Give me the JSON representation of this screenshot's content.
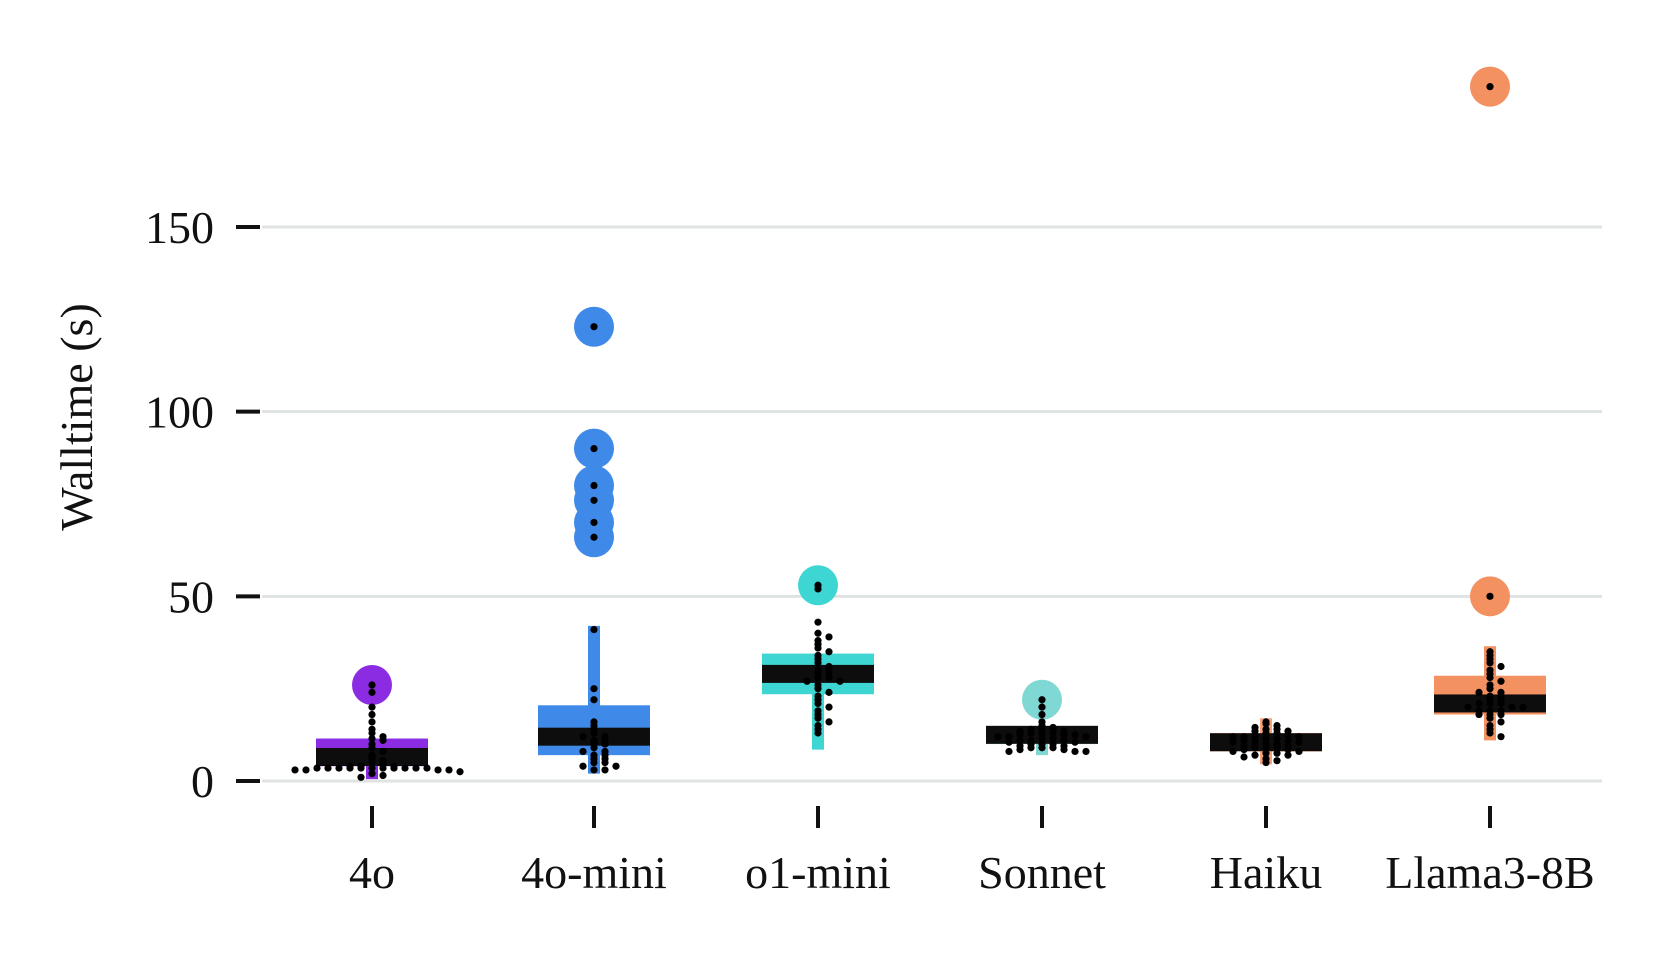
{
  "chart_data": {
    "type": "box",
    "title": "",
    "xlabel": "",
    "ylabel": "Walltime (s)",
    "ylim": [
      -5,
      195
    ],
    "yticks": [
      0,
      50,
      100,
      150
    ],
    "ytick_labels": [
      "0",
      "50",
      "100",
      "150"
    ],
    "grid": true,
    "legend": "none",
    "categories": [
      "4o",
      "4o-mini",
      "o1-mini",
      "Sonnet",
      "Haiku",
      "Llama3-8B"
    ],
    "series": [
      {
        "color": "#8b2be2",
        "q1": 4,
        "median": 6.5,
        "q3": 11.5,
        "whisker_low": 0.5,
        "whisker_high": 11.5,
        "outliers": [
          26
        ],
        "points": [
          26,
          24,
          20,
          18,
          16,
          14,
          13,
          12,
          11.5,
          11,
          10,
          9,
          8,
          7,
          6,
          5.5,
          5,
          4.5,
          4,
          4,
          4,
          3.5,
          3.5,
          3.5,
          3.5,
          3.5,
          3.5,
          3.5,
          3.5,
          3.5,
          3.5,
          3.5,
          3,
          3,
          3,
          3,
          2.5,
          2,
          1.5,
          1
        ]
      },
      {
        "color": "#3f8ae8",
        "q1": 7,
        "median": 12,
        "q3": 20.5,
        "whisker_low": 2,
        "whisker_high": 42,
        "outliers": [
          123,
          90,
          80,
          76,
          70,
          66
        ],
        "points": [
          123,
          90,
          80,
          76,
          70,
          66,
          41,
          25,
          22,
          16,
          15,
          14,
          13,
          12,
          12,
          11,
          11,
          10,
          10,
          9,
          8,
          8,
          7,
          7,
          6,
          6,
          5,
          5,
          4,
          4,
          3,
          3
        ]
      },
      {
        "color": "#3dd6d3",
        "q1": 23.5,
        "median": 29,
        "q3": 34.5,
        "whisker_low": 8.5,
        "whisker_high": 34.5,
        "outliers": [
          53
        ],
        "points": [
          53,
          52,
          43,
          40,
          39,
          38,
          37,
          36,
          35,
          34,
          33,
          32,
          31,
          30,
          30,
          29,
          29,
          28,
          28,
          27,
          27,
          26,
          25,
          24,
          23,
          22,
          21,
          20,
          19,
          18,
          17,
          16,
          15,
          14,
          13
        ]
      },
      {
        "color": "#7fd8d3",
        "q1": 10,
        "median": 12.5,
        "q3": 14.5,
        "whisker_low": 7,
        "whisker_high": 14.5,
        "outliers": [
          22
        ],
        "points": [
          22,
          20,
          18,
          16,
          15,
          14.5,
          14,
          14,
          14,
          13.5,
          13.5,
          13,
          13,
          13,
          12.5,
          12.5,
          12.5,
          12,
          12,
          12,
          11.5,
          11.5,
          11,
          11,
          11,
          10.5,
          10.5,
          10,
          10,
          10,
          9.5,
          9.5,
          9,
          9,
          9,
          8.5,
          8.5,
          8,
          8,
          8
        ]
      },
      {
        "color": "#f6a37a",
        "q1": 8,
        "median": 10.5,
        "q3": 13,
        "whisker_low": 4.5,
        "whisker_high": 17,
        "outliers": [],
        "points": [
          16,
          15.5,
          15,
          14.5,
          14,
          14,
          13.5,
          13.5,
          13,
          13,
          12.5,
          12.5,
          12,
          12,
          12,
          11.5,
          11.5,
          11,
          11,
          11,
          10.5,
          10.5,
          10,
          10,
          10,
          9.5,
          9.5,
          9,
          9,
          9,
          8.5,
          8.5,
          8,
          8,
          7.5,
          7.5,
          7,
          7,
          6.5,
          6,
          5.5,
          5
        ]
      },
      {
        "color": "#f49160",
        "q1": 18,
        "median": 21,
        "q3": 28.5,
        "whisker_low": 11,
        "whisker_high": 36.5,
        "outliers": [
          188,
          50
        ],
        "points": [
          188,
          50,
          35,
          34,
          33,
          32,
          31,
          30,
          29,
          28,
          27,
          26,
          25,
          24,
          24,
          23,
          23,
          22,
          22,
          21,
          21,
          21,
          20,
          20,
          20,
          19,
          19,
          19,
          18,
          18,
          18,
          17,
          16,
          15,
          14,
          13,
          12
        ]
      }
    ]
  }
}
